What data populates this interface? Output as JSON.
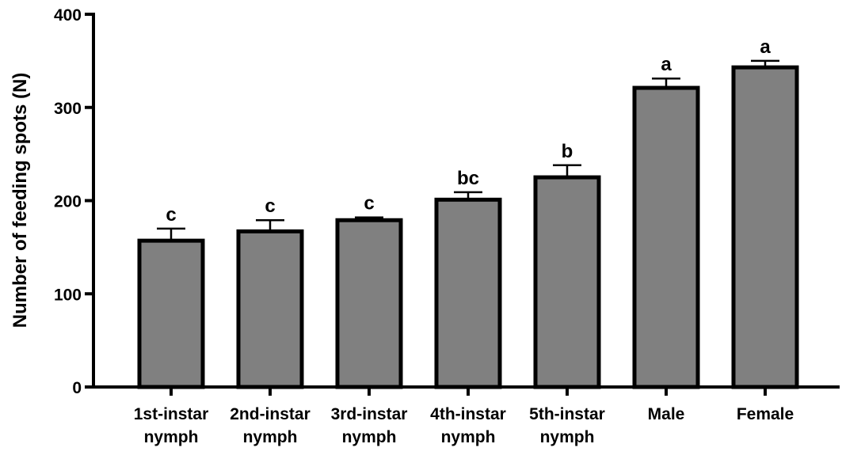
{
  "chart_data": {
    "type": "bar",
    "categories": [
      [
        "1st-instar",
        "nymph"
      ],
      [
        "2nd-instar",
        "nymph"
      ],
      [
        "3rd-instar",
        "nymph"
      ],
      [
        "4th-instar",
        "nymph"
      ],
      [
        "5th-instar",
        "nymph"
      ],
      [
        "Male"
      ],
      [
        "Female"
      ]
    ],
    "values": [
      157,
      167,
      179,
      201,
      225,
      321,
      343
    ],
    "errors": [
      13,
      12,
      3,
      8,
      13,
      10,
      7
    ],
    "significance_letters": [
      "c",
      "c",
      "c",
      "bc",
      "b",
      "a",
      "a"
    ],
    "title": "",
    "xlabel": "",
    "ylabel": "Number of feeding spots (N)",
    "ylim": [
      0,
      400
    ],
    "yticks": [
      0,
      100,
      200,
      300,
      400
    ],
    "grid": false,
    "legend": "none",
    "bar_color": "#808080",
    "edge_color": "#000000"
  }
}
